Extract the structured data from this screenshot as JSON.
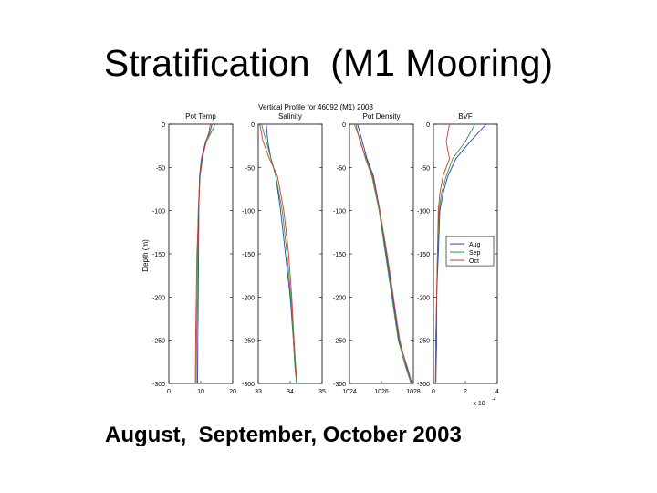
{
  "slide": {
    "title": "Stratification  (M1 Mooring)",
    "caption": "August,  September, October 2003"
  },
  "figure_title": "Vertical Profile  for 46092 (M1) 2003",
  "chart_data": {
    "type": "line",
    "shared_y": {
      "label": "Depth (m)",
      "range": [
        -300,
        0
      ],
      "ticks": [
        0,
        -50,
        -100,
        -150,
        -200,
        -250,
        -300
      ],
      "tick_labels": [
        "0",
        "-50",
        "-100",
        "-150",
        "-200",
        "-250",
        "-300"
      ]
    },
    "colors": {
      "Aug": "#2b3fb0",
      "Sep": "#2c9a3c",
      "Oct": "#d23b30"
    },
    "legend": {
      "panel": "BVF",
      "placement": "right-middle",
      "entries": [
        "Aug",
        "Sep",
        "Oct"
      ]
    },
    "panels": [
      {
        "title": "Pot Temp",
        "xlim": [
          0,
          20
        ],
        "xticks": [
          0,
          10,
          20
        ],
        "xtick_labels": [
          "0",
          "10",
          "20"
        ],
        "series": [
          {
            "name": "Aug",
            "x": [
              13.5,
              12.8,
              11.5,
              10.2,
              9.6,
              9.4,
              9.3,
              9.2,
              9.1,
              9.0
            ],
            "y": [
              0,
              -10,
              -20,
              -40,
              -60,
              -100,
              -150,
              -200,
              -250,
              -300
            ]
          },
          {
            "name": "Sep",
            "x": [
              14.5,
              13.2,
              11.8,
              10.4,
              9.7,
              9.2,
              9.0,
              8.9,
              8.7,
              8.6
            ],
            "y": [
              0,
              -10,
              -20,
              -40,
              -60,
              -100,
              -150,
              -200,
              -250,
              -300
            ]
          },
          {
            "name": "Oct",
            "x": [
              13.0,
              12.5,
              11.6,
              10.5,
              9.8,
              9.3,
              8.8,
              8.6,
              8.4,
              8.3
            ],
            "y": [
              0,
              -10,
              -20,
              -40,
              -60,
              -100,
              -150,
              -200,
              -250,
              -300
            ]
          }
        ]
      },
      {
        "title": "Salinity",
        "xlim": [
          33,
          35
        ],
        "xticks": [
          33,
          34,
          35
        ],
        "xtick_labels": [
          "33",
          "34",
          "35"
        ],
        "series": [
          {
            "name": "Aug",
            "x": [
              33.25,
              33.3,
              33.4,
              33.55,
              33.7,
              33.85,
              34.0,
              34.1,
              34.15,
              34.2
            ],
            "y": [
              0,
              -20,
              -40,
              -60,
              -100,
              -150,
              -200,
              -250,
              -280,
              -300
            ]
          },
          {
            "name": "Sep",
            "x": [
              33.1,
              33.25,
              33.4,
              33.55,
              33.75,
              33.9,
              34.02,
              34.1,
              34.15,
              34.2
            ],
            "y": [
              0,
              -20,
              -40,
              -60,
              -100,
              -150,
              -200,
              -250,
              -280,
              -300
            ]
          },
          {
            "name": "Oct",
            "x": [
              33.05,
              33.15,
              33.35,
              33.6,
              33.8,
              33.95,
              34.05,
              34.12,
              34.17,
              34.22
            ],
            "y": [
              0,
              -20,
              -40,
              -60,
              -100,
              -150,
              -200,
              -250,
              -280,
              -300
            ]
          }
        ]
      },
      {
        "title": "Pot Density",
        "xlim": [
          1024,
          1028
        ],
        "xticks": [
          1024,
          1026,
          1028
        ],
        "xtick_labels": [
          "1024",
          "1026",
          "1028"
        ],
        "series": [
          {
            "name": "Aug",
            "x": [
              1024.5,
              1024.8,
              1025.1,
              1025.5,
              1025.9,
              1026.3,
              1026.7,
              1027.1,
              1027.6,
              1027.9
            ],
            "y": [
              0,
              -20,
              -40,
              -60,
              -100,
              -150,
              -200,
              -250,
              -280,
              -300
            ]
          },
          {
            "name": "Sep",
            "x": [
              1024.3,
              1024.7,
              1025.0,
              1025.4,
              1025.85,
              1026.25,
              1026.65,
              1027.05,
              1027.5,
              1027.85
            ],
            "y": [
              0,
              -20,
              -40,
              -60,
              -100,
              -150,
              -200,
              -250,
              -280,
              -300
            ]
          },
          {
            "name": "Oct",
            "x": [
              1024.4,
              1024.65,
              1025.05,
              1025.45,
              1025.9,
              1026.35,
              1026.75,
              1027.15,
              1027.55,
              1027.9
            ],
            "y": [
              0,
              -20,
              -40,
              -60,
              -100,
              -150,
              -200,
              -250,
              -280,
              -300
            ]
          }
        ]
      },
      {
        "title": "BVF",
        "xlim": [
          0,
          4
        ],
        "xticks": [
          0,
          2,
          4
        ],
        "xtick_labels": [
          "0",
          "2",
          "4"
        ],
        "xscale_label": "x 10",
        "xscale_exp": "-4",
        "series": [
          {
            "name": "Aug",
            "x": [
              3.3,
              2.3,
              1.4,
              0.9,
              0.6,
              0.4,
              0.3,
              0.2,
              0.2,
              0.15
            ],
            "y": [
              0,
              -20,
              -40,
              -60,
              -80,
              -100,
              -150,
              -200,
              -250,
              -300
            ]
          },
          {
            "name": "Sep",
            "x": [
              2.6,
              2.0,
              1.2,
              0.8,
              0.5,
              0.35,
              0.25,
              0.2,
              0.15,
              0.15
            ],
            "y": [
              0,
              -20,
              -40,
              -60,
              -80,
              -100,
              -150,
              -200,
              -250,
              -300
            ]
          },
          {
            "name": "Oct",
            "x": [
              1.0,
              0.8,
              1.0,
              0.6,
              0.4,
              0.3,
              0.25,
              0.2,
              0.15,
              0.12
            ],
            "y": [
              0,
              -20,
              -40,
              -60,
              -80,
              -100,
              -150,
              -200,
              -250,
              -300
            ]
          }
        ]
      }
    ]
  }
}
